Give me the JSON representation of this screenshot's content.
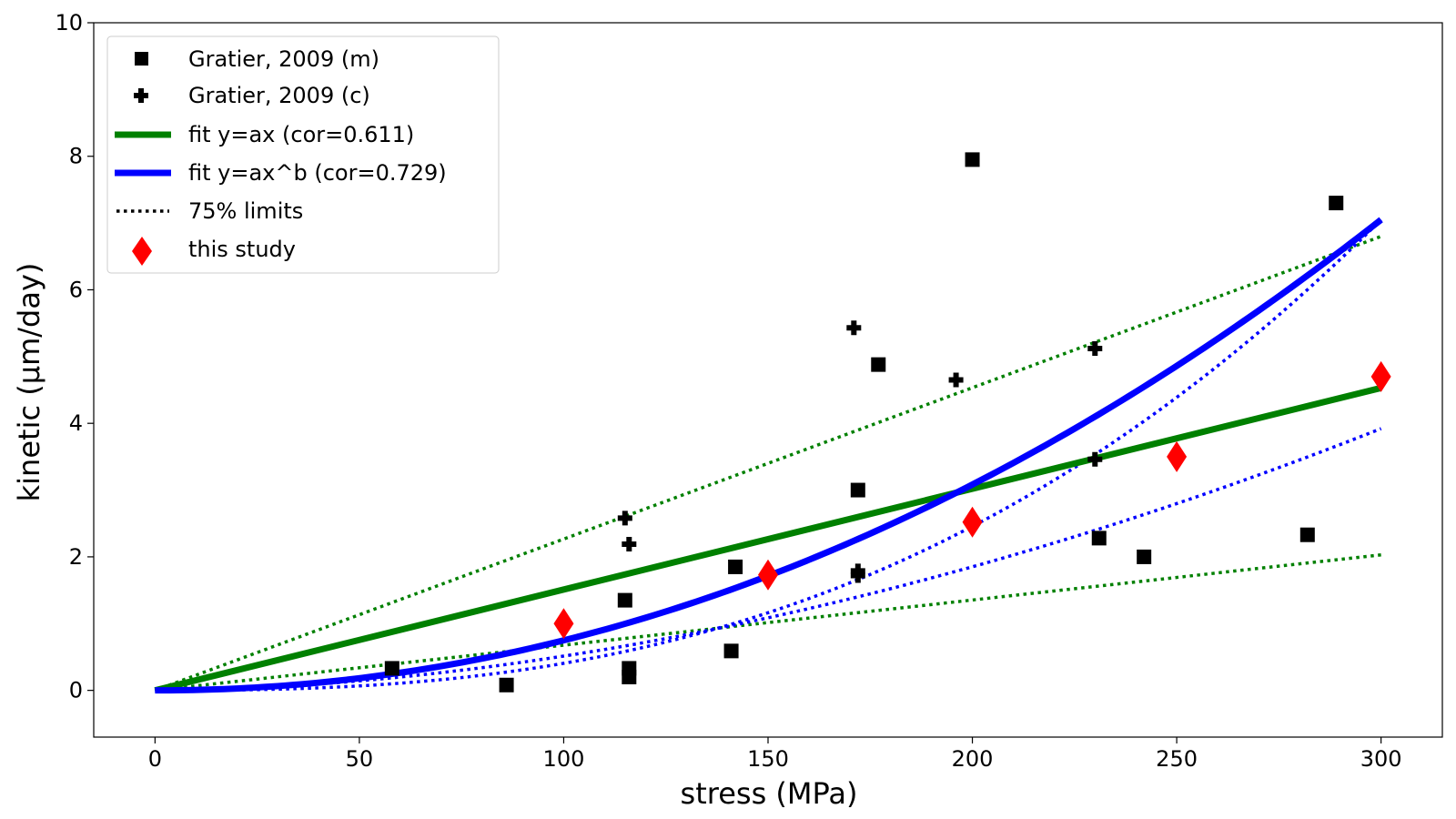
{
  "chart_data": {
    "type": "scatter",
    "xlabel": "stress (MPa)",
    "ylabel": "kinetic (μm/day)",
    "xlim": [
      -15,
      315
    ],
    "ylim": [
      -0.7,
      10
    ],
    "xticks": [
      0,
      50,
      100,
      150,
      200,
      250,
      300
    ],
    "yticks": [
      0,
      2,
      4,
      6,
      8,
      10
    ],
    "grid": false,
    "legend_position": "top-left",
    "series": [
      {
        "name": "Gratier, 2009 (m)",
        "kind": "scatter",
        "marker": "square",
        "color": "#000000",
        "points": [
          [
            58,
            0.33
          ],
          [
            86,
            0.08
          ],
          [
            115,
            1.35
          ],
          [
            116,
            0.33
          ],
          [
            116,
            0.2
          ],
          [
            141,
            0.59
          ],
          [
            142,
            1.85
          ],
          [
            172,
            3.0
          ],
          [
            177,
            4.88
          ],
          [
            200,
            7.95
          ],
          [
            231,
            2.28
          ],
          [
            242,
            2.0
          ],
          [
            282,
            2.33
          ],
          [
            289,
            7.3
          ]
        ]
      },
      {
        "name": "Gratier, 2009 (c)",
        "kind": "scatter",
        "marker": "plus",
        "color": "#000000",
        "points": [
          [
            115,
            2.58
          ],
          [
            116,
            2.19
          ],
          [
            171,
            5.43
          ],
          [
            172,
            1.79
          ],
          [
            172,
            1.72
          ],
          [
            196,
            4.65
          ],
          [
            230,
            5.12
          ],
          [
            230,
            3.46
          ]
        ]
      },
      {
        "name": "fit y=ax (cor=0.611)",
        "kind": "line",
        "color": "#008000",
        "x": [
          0,
          300
        ],
        "y": [
          0,
          4.53
        ]
      },
      {
        "name": "fit y=ax^b (cor=0.729)",
        "kind": "line",
        "color": "#0000ff",
        "formula": {
          "a": 7.05,
          "b": 2.04,
          "xmax": 300
        }
      },
      {
        "name": "75% limits",
        "kind": "dotted",
        "color": "#000000",
        "lines": [
          {
            "color": "#008000",
            "x": [
              0,
              300
            ],
            "y": [
              0,
              6.8
            ]
          },
          {
            "color": "#008000",
            "x": [
              0,
              300
            ],
            "y": [
              0,
              2.03
            ]
          },
          {
            "color": "#0000ff",
            "formula": {
              "a": 7.05,
              "b": 2.6,
              "xmax": 300
            }
          },
          {
            "color": "#0000ff",
            "formula": {
              "a": 3.92,
              "b": 1.85,
              "xmax": 300
            }
          }
        ]
      },
      {
        "name": "this study",
        "kind": "scatter",
        "marker": "diamond",
        "color": "#ff0000",
        "points": [
          [
            100,
            1.0
          ],
          [
            150,
            1.73
          ],
          [
            200,
            2.52
          ],
          [
            250,
            3.5
          ],
          [
            300,
            4.7
          ]
        ]
      }
    ]
  }
}
